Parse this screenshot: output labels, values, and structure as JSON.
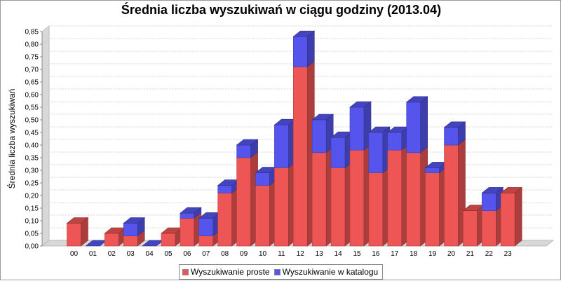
{
  "chart_data": {
    "type": "bar",
    "stacked": true,
    "three_d": true,
    "title": "Średnia liczba wyszukiwań w ciągu godziny (2013.04)",
    "ylabel": "Średnia liczba wyszukiwań",
    "xlabel": "",
    "ylim": [
      0,
      0.85
    ],
    "y_ticks": [
      "0,00",
      "0,05",
      "0,10",
      "0,15",
      "0,20",
      "0,25",
      "0,30",
      "0,35",
      "0,40",
      "0,45",
      "0,50",
      "0,55",
      "0,60",
      "0,65",
      "0,70",
      "0,75",
      "0,80",
      "0,85"
    ],
    "grid": true,
    "legend_position": "bottom",
    "categories": [
      "00",
      "01",
      "02",
      "03",
      "04",
      "05",
      "06",
      "07",
      "08",
      "09",
      "10",
      "11",
      "12",
      "13",
      "14",
      "15",
      "16",
      "17",
      "18",
      "19",
      "20",
      "21",
      "22",
      "23"
    ],
    "series": [
      {
        "name": "Wyszukiwanie proste",
        "color": "#ee5555",
        "values": [
          0.09,
          0.0,
          0.05,
          0.04,
          0.0,
          0.05,
          0.11,
          0.04,
          0.21,
          0.35,
          0.24,
          0.31,
          0.71,
          0.37,
          0.31,
          0.38,
          0.29,
          0.38,
          0.37,
          0.29,
          0.4,
          0.14,
          0.14,
          0.21
        ]
      },
      {
        "name": "Wyszukiwanie w katalogu",
        "color": "#5555ee",
        "values": [
          0.0,
          0.0,
          0.0,
          0.05,
          0.0,
          0.0,
          0.02,
          0.07,
          0.03,
          0.05,
          0.05,
          0.17,
          0.12,
          0.13,
          0.12,
          0.17,
          0.16,
          0.07,
          0.2,
          0.02,
          0.07,
          0.0,
          0.07,
          0.0
        ]
      }
    ]
  }
}
